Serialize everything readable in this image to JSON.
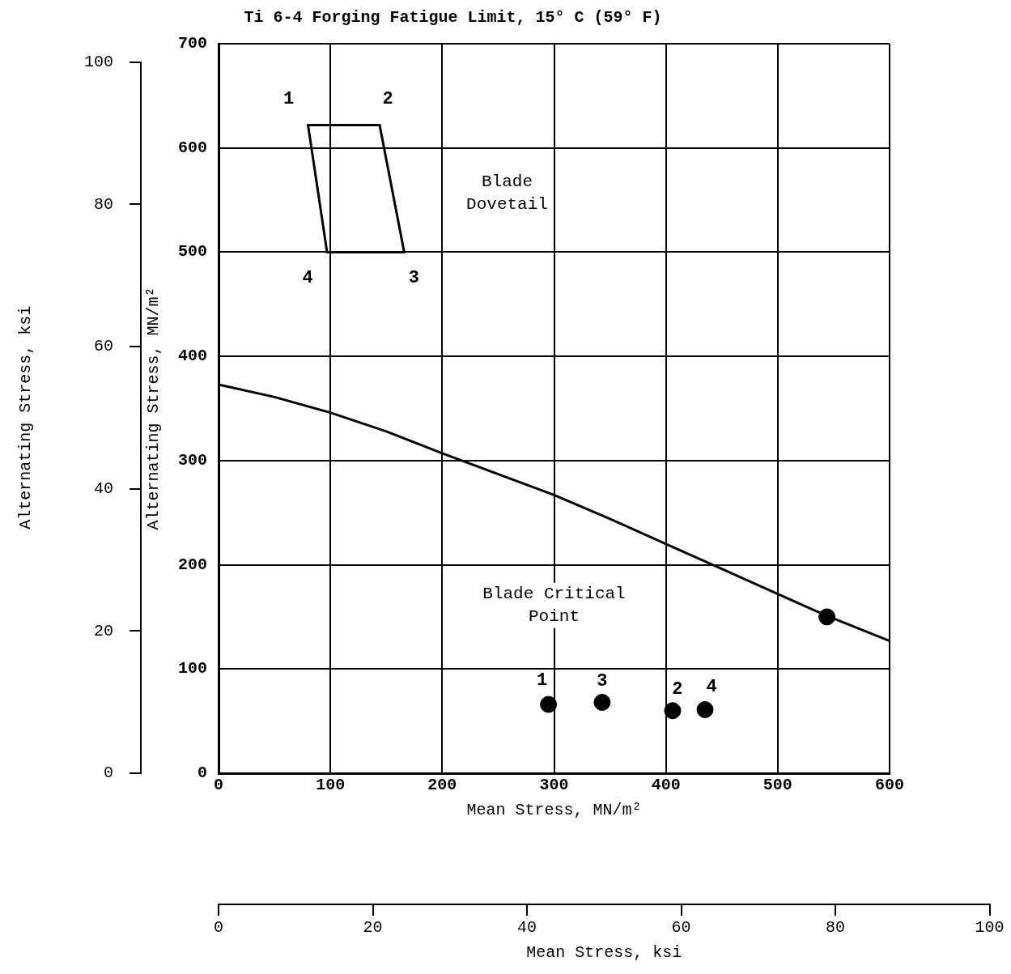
{
  "chart_data": {
    "type": "line",
    "title": "Ti 6-4 Forging Fatigue Limit, 15° C (59° F)",
    "xlabel": "Mean Stress, MN/m²",
    "ylabel": "Alternating Stress, MN/m²",
    "y2label": "Alternating Stress, ksi",
    "x2label": "Mean Stress, ksi",
    "xlim": [
      0,
      600
    ],
    "xticks": [
      0,
      100,
      200,
      300,
      400,
      500,
      600
    ],
    "ylim": [
      0,
      700
    ],
    "yticks": [
      0,
      100,
      200,
      300,
      400,
      500,
      600,
      700
    ],
    "x2lim": [
      0,
      100
    ],
    "x2ticks": [
      0,
      20,
      40,
      60,
      80,
      100
    ],
    "y2lim": [
      0,
      100
    ],
    "y2ticks": [
      0,
      20,
      40,
      60,
      80,
      100
    ],
    "grid": true,
    "legend": false,
    "line_style": "solid",
    "series": [
      {
        "color": "#000000",
        "marker": "none",
        "x": [
          0,
          50,
          100,
          150,
          200,
          250,
          300,
          350,
          400,
          450,
          500,
          544,
          600
        ],
        "values": [
          373,
          361,
          346,
          328,
          307,
          287,
          267,
          244,
          220,
          196,
          172,
          151,
          127
        ]
      },
      {
        "color": "#000000",
        "marker": "none",
        "x": [
          80,
          144
        ],
        "values": [
          622,
          622
        ]
      },
      {
        "color": "#000000",
        "marker": "none",
        "x": [
          144,
          166
        ],
        "values": [
          622,
          500
        ]
      },
      {
        "color": "#000000",
        "marker": "none",
        "x": [
          97,
          166
        ],
        "values": [
          500,
          500
        ]
      },
      {
        "color": "#000000",
        "marker": "none",
        "x": [
          80,
          97
        ],
        "values": [
          622,
          500
        ]
      },
      {
        "type": "scatter",
        "color": "#000000",
        "marker": "circle",
        "x": [
          295,
          343,
          406,
          435,
          544
        ],
        "values": [
          66,
          68,
          60,
          61,
          150
        ]
      }
    ],
    "annotations": [
      {
        "text": "1",
        "x": 80,
        "y": 622
      },
      {
        "text": "2",
        "x": 144,
        "y": 622
      },
      {
        "text": "3",
        "x": 166,
        "y": 500
      },
      {
        "text": "4",
        "x": 97,
        "y": 500
      },
      "Blade\nDovetail",
      "Blade Critical\nPoint",
      {
        "text": "1",
        "x": 295,
        "y": 66
      },
      {
        "text": "3",
        "x": 343,
        "y": 68
      },
      {
        "text": "2",
        "x": 406,
        "y": 60
      },
      {
        "text": "4",
        "x": 435,
        "y": 61
      }
    ]
  }
}
